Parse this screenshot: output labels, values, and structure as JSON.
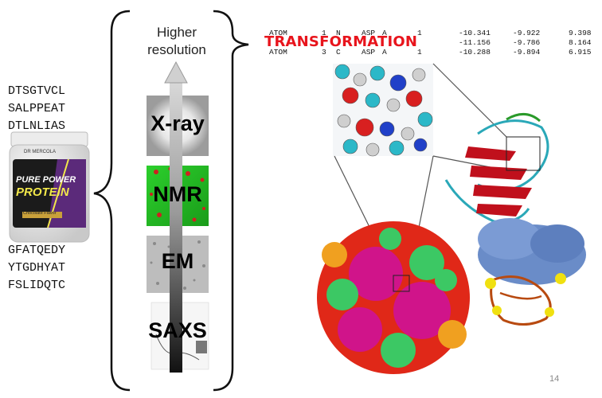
{
  "sequence_top": [
    "DTSGTVCL",
    "SALPPEAT",
    "DTLNLIAS"
  ],
  "sequence_bottom": [
    "GFATQEDY",
    "YTGDHYAT",
    "FSLIDQTC"
  ],
  "jar": {
    "brand": "DR MERCOLA",
    "line1": "PURE POWER",
    "line2": "PROTEIN",
    "flavor": "Chocolate Flavor"
  },
  "resolution_label": [
    "Higher",
    "resolution"
  ],
  "methods": [
    {
      "key": "xray",
      "label": "X-ray"
    },
    {
      "key": "nmr",
      "label": "NMR"
    },
    {
      "key": "em",
      "label": "EM"
    },
    {
      "key": "saxs",
      "label": "SAXS"
    }
  ],
  "transformation_label": "TRANSFORMATION",
  "pdb_lines": [
    {
      "record": "ATOM",
      "serial": "1",
      "name": "N",
      "res": "ASP",
      "chain": "A",
      "resnum": "1",
      "x": "-10.341",
      "y": "-9.922",
      "z": "9.398"
    },
    {
      "record": "",
      "serial": "",
      "name": "",
      "res": "",
      "chain": "",
      "resnum": "",
      "x": "-11.156",
      "y": "-9.786",
      "z": "8.164"
    },
    {
      "record": "ATOM",
      "serial": "3",
      "name": "C",
      "res": "ASP",
      "chain": "A",
      "resnum": "1",
      "x": "-10.288",
      "y": "-9.894",
      "z": "6.915"
    }
  ],
  "page_number": "14",
  "colors": {
    "transformation": "#e8141c",
    "arrow": "#9a9a9a",
    "ribbon_red": "#c0101c",
    "ribbon_cyan": "#2aa8b8",
    "capsid_magenta": "#d0148a",
    "capsid_green": "#3cc864",
    "capsid_red": "#e02818",
    "surface_blue": "#6a8cc8",
    "atom_yellow": "#f0e010"
  }
}
